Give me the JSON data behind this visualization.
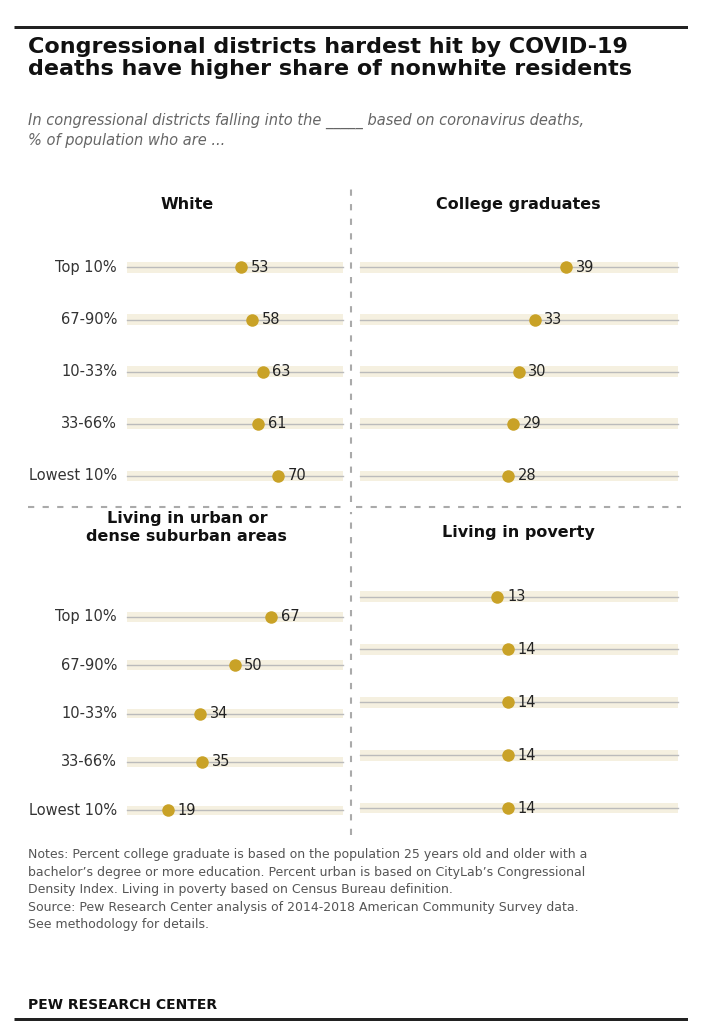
{
  "title": "Congressional districts hardest hit by COVID-19\ndeaths have higher share of nonwhite residents",
  "subtitle": "In congressional districts falling into the _____ based on coronavirus deaths,\n% of population who are ...",
  "categories": [
    "Top 10%",
    "67-90%",
    "10-33%",
    "33-66%",
    "Lowest 10%"
  ],
  "panels": [
    {
      "title": "White",
      "values": [
        53,
        58,
        63,
        61,
        70
      ],
      "xmax": 100,
      "show_labels": true
    },
    {
      "title": "College graduates",
      "values": [
        39,
        33,
        30,
        29,
        28
      ],
      "xmax": 60,
      "show_labels": false
    },
    {
      "title": "Living in urban or\ndense suburban areas",
      "values": [
        67,
        50,
        34,
        35,
        19
      ],
      "xmax": 100,
      "show_labels": true
    },
    {
      "title": "Living in poverty",
      "values": [
        13,
        14,
        14,
        14,
        14
      ],
      "xmax": 30,
      "show_labels": false
    }
  ],
  "dot_color": "#C9A227",
  "bar_bg_color": "#F5F0E0",
  "bar_line_color": "#BBBBBB",
  "text_color": "#333333",
  "notes_line1": "Notes: Percent college graduate is based on the population 25 years old and older with a",
  "notes_line2": "bachelor’s degree or more education. Percent urban is based on CityLab’s Congressional",
  "notes_line3": "Density Index. Living in poverty based on Census Bureau definition.",
  "notes_line4": "Source: Pew Research Center analysis of 2014-2018 American Community Survey data.",
  "notes_line5": "See methodology for details.",
  "source_label": "PEW RESEARCH CENTER",
  "bg_color": "#FFFFFF"
}
